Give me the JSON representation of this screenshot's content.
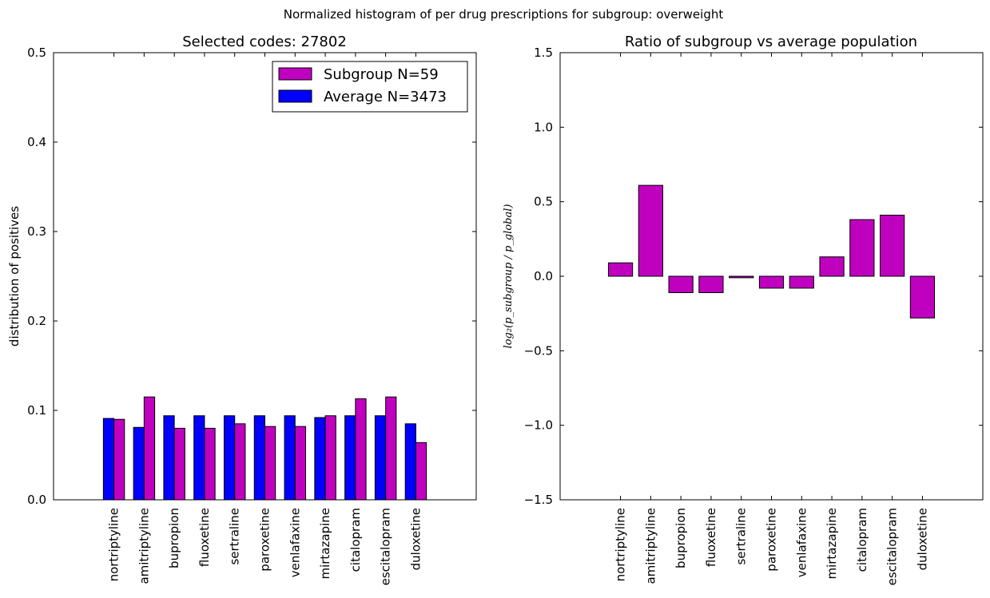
{
  "figure": {
    "suptitle": "Normalized histogram of per drug prescriptions for subgroup: overweight"
  },
  "colors": {
    "subgroup": "#bf00bf",
    "average": "#0000ff",
    "edge": "#000000"
  },
  "chart_data": [
    {
      "type": "bar",
      "title": "Selected codes: 27802",
      "xlabel": "",
      "ylabel": "distribution of positives",
      "ylim": [
        0.0,
        0.5
      ],
      "yticks": [
        "0.0",
        "0.1",
        "0.2",
        "0.3",
        "0.4",
        "0.5"
      ],
      "categories": [
        "nortriptyline",
        "amitriptyline",
        "bupropion",
        "fluoxetine",
        "sertraline",
        "paroxetine",
        "venlafaxine",
        "mirtazapine",
        "citalopram",
        "escitalopram",
        "duloxetine"
      ],
      "series": [
        {
          "name": "Average N=3473",
          "values": [
            0.091,
            0.081,
            0.094,
            0.094,
            0.094,
            0.094,
            0.094,
            0.092,
            0.094,
            0.094,
            0.085
          ]
        },
        {
          "name": "Subgroup N=59",
          "values": [
            0.09,
            0.115,
            0.08,
            0.08,
            0.085,
            0.082,
            0.082,
            0.094,
            0.113,
            0.115,
            0.064
          ]
        }
      ],
      "legend": {
        "position": "top-right",
        "entries": [
          "Subgroup N=59",
          "Average N=3473"
        ]
      },
      "grid": false
    },
    {
      "type": "bar",
      "title": "Ratio of subgroup vs average population",
      "xlabel": "",
      "ylabel": "log₂(p_subgroup / p_global)",
      "ylim": [
        -1.5,
        1.5
      ],
      "yticks": [
        "−1.5",
        "−1.0",
        "−0.5",
        "0.0",
        "0.5",
        "1.0",
        "1.5"
      ],
      "categories": [
        "nortriptyline",
        "amitriptyline",
        "bupropion",
        "fluoxetine",
        "sertraline",
        "paroxetine",
        "venlafaxine",
        "mirtazapine",
        "citalopram",
        "escitalopram",
        "duloxetine"
      ],
      "values": [
        0.09,
        0.61,
        -0.11,
        -0.11,
        -0.01,
        -0.08,
        -0.08,
        0.13,
        0.38,
        0.41,
        -0.28
      ],
      "grid": false
    }
  ]
}
